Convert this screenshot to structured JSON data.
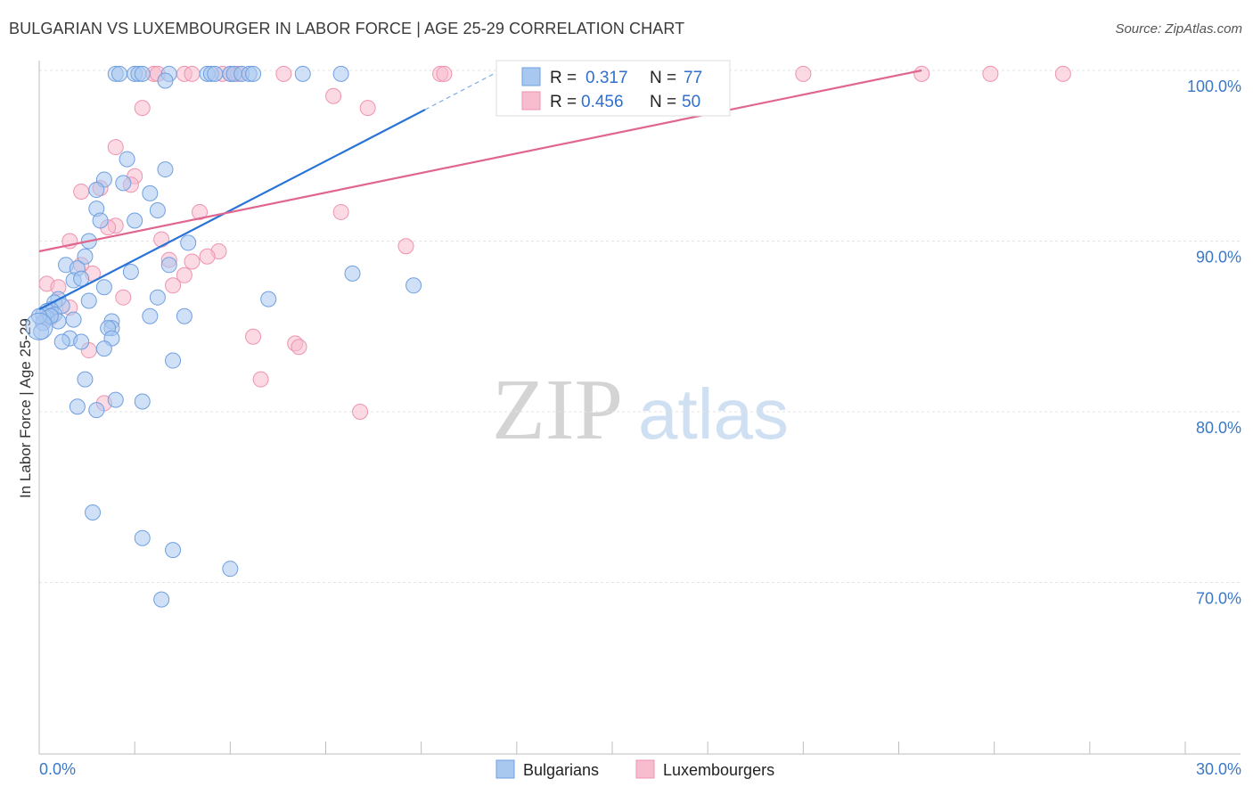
{
  "header": {
    "title": "BULGARIAN VS LUXEMBOURGER IN LABOR FORCE | AGE 25-29 CORRELATION CHART",
    "source": "Source: ZipAtlas.com"
  },
  "watermark": {
    "zip": "ZIP",
    "atlas": "atlas"
  },
  "colors": {
    "blue_fill": "#a9c8f0",
    "blue_stroke": "#6f9fe0",
    "blue_line": "#2a73d6",
    "pink_fill": "#f7bccd",
    "pink_stroke": "#ee93ae",
    "pink_line": "#e0668f",
    "grid": "#e3e3e3",
    "tick_text": "#3b78c7"
  },
  "legend": {
    "rows": [
      {
        "r_label": "R =",
        "r_value": "0.317",
        "n_label": "N =",
        "n_value": "77"
      },
      {
        "r_label": "R =",
        "r_value": "0.456",
        "n_label": "N =",
        "n_value": "50"
      }
    ]
  },
  "chart_data": {
    "type": "scatter",
    "title": "BULGARIAN VS LUXEMBOURGER IN LABOR FORCE | AGE 25-29 CORRELATION CHART",
    "xlabel": "",
    "ylabel": "In Labor Force | Age 25-29",
    "xlim": [
      0,
      30
    ],
    "ylim": [
      60,
      100
    ],
    "x_tick_labels": [
      "0.0%",
      "30.0%"
    ],
    "y_ticks": [
      70,
      80,
      90,
      100
    ],
    "y_tick_labels": [
      "70.0%",
      "80.0%",
      "90.0%",
      "100.0%"
    ],
    "grid": true,
    "legend_position": "top-center",
    "series": [
      {
        "name": "Bulgarians",
        "R": 0.317,
        "N": 77,
        "trend": {
          "x1": 0.0,
          "y1": 86.0,
          "x2": 10.1,
          "y2": 97.7,
          "dashed_to_x": 11.9,
          "dashed_to_y": 99.8
        },
        "points": [
          [
            2.0,
            99.8
          ],
          [
            2.1,
            99.8
          ],
          [
            2.5,
            99.8
          ],
          [
            2.6,
            99.8
          ],
          [
            2.7,
            99.8
          ],
          [
            3.4,
            99.8
          ],
          [
            4.4,
            99.8
          ],
          [
            4.5,
            99.8
          ],
          [
            4.6,
            99.8
          ],
          [
            5.0,
            99.8
          ],
          [
            5.1,
            99.8
          ],
          [
            5.3,
            99.8
          ],
          [
            5.5,
            99.8
          ],
          [
            5.6,
            99.8
          ],
          [
            6.9,
            99.8
          ],
          [
            7.9,
            99.8
          ],
          [
            3.3,
            99.4
          ],
          [
            2.3,
            94.8
          ],
          [
            3.3,
            94.2
          ],
          [
            1.7,
            93.6
          ],
          [
            2.2,
            93.4
          ],
          [
            1.5,
            93.0
          ],
          [
            2.9,
            92.8
          ],
          [
            1.5,
            91.9
          ],
          [
            3.1,
            91.8
          ],
          [
            1.6,
            91.2
          ],
          [
            2.5,
            91.2
          ],
          [
            1.3,
            90.0
          ],
          [
            3.9,
            89.9
          ],
          [
            1.2,
            89.1
          ],
          [
            0.7,
            88.6
          ],
          [
            1.0,
            88.4
          ],
          [
            2.4,
            88.2
          ],
          [
            3.4,
            88.6
          ],
          [
            8.2,
            88.1
          ],
          [
            0.9,
            87.7
          ],
          [
            1.1,
            87.8
          ],
          [
            1.7,
            87.3
          ],
          [
            9.8,
            87.4
          ],
          [
            0.5,
            86.6
          ],
          [
            0.4,
            86.4
          ],
          [
            3.1,
            86.7
          ],
          [
            6.0,
            86.6
          ],
          [
            1.3,
            86.5
          ],
          [
            0.6,
            86.2
          ],
          [
            0.3,
            86.0
          ],
          [
            0.2,
            85.9
          ],
          [
            0.4,
            85.7
          ],
          [
            0.1,
            85.7
          ],
          [
            0.2,
            85.5
          ],
          [
            0.5,
            85.3
          ],
          [
            0.1,
            85.2
          ],
          [
            0.3,
            85.6
          ],
          [
            0.9,
            85.4
          ],
          [
            2.9,
            85.6
          ],
          [
            3.8,
            85.6
          ],
          [
            1.9,
            85.3
          ],
          [
            1.9,
            84.9
          ],
          [
            1.8,
            84.9
          ],
          [
            1.9,
            84.3
          ],
          [
            0.8,
            84.3
          ],
          [
            0.6,
            84.1
          ],
          [
            1.1,
            84.1
          ],
          [
            1.7,
            83.7
          ],
          [
            3.5,
            83.0
          ],
          [
            1.2,
            81.9
          ],
          [
            2.7,
            80.6
          ],
          [
            2.0,
            80.7
          ],
          [
            1.0,
            80.3
          ],
          [
            1.5,
            80.1
          ],
          [
            0.05,
            84.7
          ],
          [
            1.4,
            74.1
          ],
          [
            2.7,
            72.6
          ],
          [
            3.5,
            71.9
          ],
          [
            5.0,
            70.8
          ],
          [
            3.2,
            69.0
          ],
          [
            0.0,
            85.6
          ]
        ]
      },
      {
        "name": "Luxembourgers",
        "R": 0.456,
        "N": 50,
        "trend": {
          "x1": 0.0,
          "y1": 89.4,
          "x2": 23.1,
          "y2": 100.0
        },
        "points": [
          [
            3.0,
            99.8
          ],
          [
            3.1,
            99.8
          ],
          [
            3.8,
            99.8
          ],
          [
            4.0,
            99.8
          ],
          [
            4.8,
            99.8
          ],
          [
            5.0,
            99.8
          ],
          [
            5.1,
            99.8
          ],
          [
            5.2,
            99.8
          ],
          [
            6.4,
            99.8
          ],
          [
            10.5,
            99.8
          ],
          [
            10.6,
            99.8
          ],
          [
            20.0,
            99.8
          ],
          [
            23.1,
            99.8
          ],
          [
            24.9,
            99.8
          ],
          [
            26.8,
            99.8
          ],
          [
            7.7,
            98.5
          ],
          [
            8.6,
            97.8
          ],
          [
            2.7,
            97.8
          ],
          [
            2.0,
            95.5
          ],
          [
            2.5,
            93.8
          ],
          [
            2.4,
            93.3
          ],
          [
            1.1,
            92.9
          ],
          [
            1.6,
            93.1
          ],
          [
            4.2,
            91.7
          ],
          [
            7.9,
            91.7
          ],
          [
            2.0,
            90.9
          ],
          [
            1.8,
            90.8
          ],
          [
            0.8,
            90.0
          ],
          [
            3.2,
            90.1
          ],
          [
            9.6,
            89.7
          ],
          [
            4.7,
            89.4
          ],
          [
            4.4,
            89.1
          ],
          [
            3.4,
            88.9
          ],
          [
            4.0,
            88.8
          ],
          [
            1.1,
            88.6
          ],
          [
            1.4,
            88.1
          ],
          [
            3.8,
            88.0
          ],
          [
            0.2,
            87.5
          ],
          [
            0.5,
            87.3
          ],
          [
            3.5,
            87.4
          ],
          [
            2.2,
            86.7
          ],
          [
            0.8,
            86.1
          ],
          [
            0.3,
            85.5
          ],
          [
            5.6,
            84.4
          ],
          [
            6.7,
            84.0
          ],
          [
            6.8,
            83.8
          ],
          [
            1.3,
            83.6
          ],
          [
            5.8,
            81.9
          ],
          [
            1.7,
            80.5
          ],
          [
            8.4,
            80.0
          ]
        ]
      }
    ]
  },
  "bottom_legend": {
    "items": [
      "Bulgarians",
      "Luxembourgers"
    ]
  }
}
